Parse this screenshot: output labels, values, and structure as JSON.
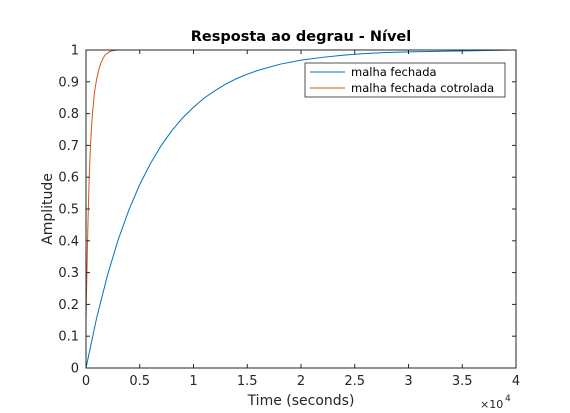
{
  "chart_data": {
    "type": "line",
    "title": "Resposta ao degrau - Nível",
    "xlabel": "Time (seconds)",
    "ylabel": "Amplitude",
    "x_exponent_label": "×10",
    "x_exponent_power": "4",
    "xlim": [
      0,
      40000
    ],
    "ylim": [
      0,
      1
    ],
    "x_ticks": [
      0,
      5000,
      10000,
      15000,
      20000,
      25000,
      30000,
      35000,
      40000
    ],
    "x_tick_labels": [
      "0",
      "0.5",
      "1",
      "1.5",
      "2",
      "2.5",
      "3",
      "3.5",
      "4"
    ],
    "y_ticks": [
      0,
      0.1,
      0.2,
      0.3,
      0.4,
      0.5,
      0.6,
      0.7,
      0.8,
      0.9,
      1
    ],
    "y_tick_labels": [
      "0",
      "0.1",
      "0.2",
      "0.3",
      "0.4",
      "0.5",
      "0.6",
      "0.7",
      "0.8",
      "0.9",
      "1"
    ],
    "grid": false,
    "legend_position": "top-right",
    "steady_state_value": 1,
    "series": [
      {
        "name": "malha fechada",
        "color": "#0072BD",
        "x": [
          0,
          1000,
          2000,
          3000,
          4000,
          5000,
          6000,
          7000,
          8000,
          9000,
          10000,
          11000,
          12000,
          13000,
          14000,
          15000,
          16000,
          18000,
          20000,
          22000,
          24000,
          26000,
          28000,
          30000,
          40000
        ],
        "y": [
          0,
          0.159,
          0.292,
          0.404,
          0.498,
          0.577,
          0.643,
          0.7,
          0.747,
          0.787,
          0.82,
          0.849,
          0.872,
          0.893,
          0.91,
          0.924,
          0.936,
          0.955,
          0.968,
          0.977,
          0.984,
          0.989,
          0.992,
          0.994,
          1
        ]
      },
      {
        "name": "malha fechada cotrolada",
        "color": "#D95319",
        "x": [
          0,
          1,
          100,
          200,
          300,
          400,
          500,
          600,
          800,
          1000,
          1200,
          1400,
          1600,
          1800,
          2000,
          2200,
          2500,
          3000,
          3500,
          40000
        ],
        "y": [
          0,
          0.15,
          0.33,
          0.48,
          0.6,
          0.685,
          0.75,
          0.8,
          0.87,
          0.91,
          0.94,
          0.96,
          0.975,
          0.985,
          0.99,
          0.995,
          0.998,
          1,
          1,
          1
        ]
      }
    ]
  }
}
